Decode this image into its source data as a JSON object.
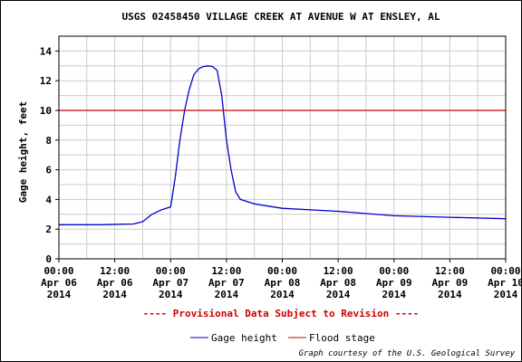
{
  "chart_data": {
    "type": "line",
    "title": "USGS 02458450 VILLAGE CREEK AT AVENUE W AT ENSLEY, AL",
    "ylabel": "Gage height, feet",
    "xlabel": "",
    "ylim": [
      0,
      15
    ],
    "yticks": [
      0,
      2,
      4,
      6,
      8,
      10,
      12,
      14
    ],
    "xlim_hours": [
      0,
      96
    ],
    "xtick_labels": [
      [
        "00:00",
        "Apr 06",
        "2014"
      ],
      [
        "12:00",
        "Apr 06",
        "2014"
      ],
      [
        "00:00",
        "Apr 07",
        "2014"
      ],
      [
        "12:00",
        "Apr 07",
        "2014"
      ],
      [
        "00:00",
        "Apr 08",
        "2014"
      ],
      [
        "12:00",
        "Apr 08",
        "2014"
      ],
      [
        "00:00",
        "Apr 09",
        "2014"
      ],
      [
        "12:00",
        "Apr 09",
        "2014"
      ],
      [
        "00:00",
        "Apr 10",
        "2014"
      ]
    ],
    "grid": true,
    "legend_position": "bottom",
    "series": [
      {
        "name": "Gage height",
        "color": "#0000cc",
        "points": [
          [
            "Apr 06 00:00",
            2.3
          ],
          [
            "Apr 06 09:00",
            2.3
          ],
          [
            "Apr 06 16:00",
            2.35
          ],
          [
            "Apr 06 18:00",
            2.5
          ],
          [
            "Apr 06 20:00",
            3.0
          ],
          [
            "Apr 06 22:00",
            3.3
          ],
          [
            "Apr 07 00:00",
            3.5
          ],
          [
            "Apr 07 01:00",
            5.5
          ],
          [
            "Apr 07 02:00",
            8.0
          ],
          [
            "Apr 07 03:00",
            10.0
          ],
          [
            "Apr 07 04:00",
            11.4
          ],
          [
            "Apr 07 05:00",
            12.4
          ],
          [
            "Apr 07 06:00",
            12.8
          ],
          [
            "Apr 07 07:00",
            12.95
          ],
          [
            "Apr 07 08:00",
            13.0
          ],
          [
            "Apr 07 09:00",
            12.95
          ],
          [
            "Apr 07 10:00",
            12.7
          ],
          [
            "Apr 07 11:00",
            11.0
          ],
          [
            "Apr 07 12:00",
            8.0
          ],
          [
            "Apr 07 13:00",
            6.0
          ],
          [
            "Apr 07 14:00",
            4.5
          ],
          [
            "Apr 07 15:00",
            4.0
          ],
          [
            "Apr 07 18:00",
            3.7
          ],
          [
            "Apr 08 00:00",
            3.4
          ],
          [
            "Apr 08 12:00",
            3.2
          ],
          [
            "Apr 09 00:00",
            2.9
          ],
          [
            "Apr 09 12:00",
            2.8
          ],
          [
            "Apr 10 00:00",
            2.7
          ]
        ]
      },
      {
        "name": "Flood stage",
        "color": "#cc0000",
        "points": [
          [
            "Apr 06 00:00",
            10
          ],
          [
            "Apr 10 00:00",
            10
          ]
        ]
      }
    ],
    "annotation": "---- Provisional Data Subject to Revision ----",
    "credit": "Graph courtesy of the U.S. Geological Survey"
  }
}
